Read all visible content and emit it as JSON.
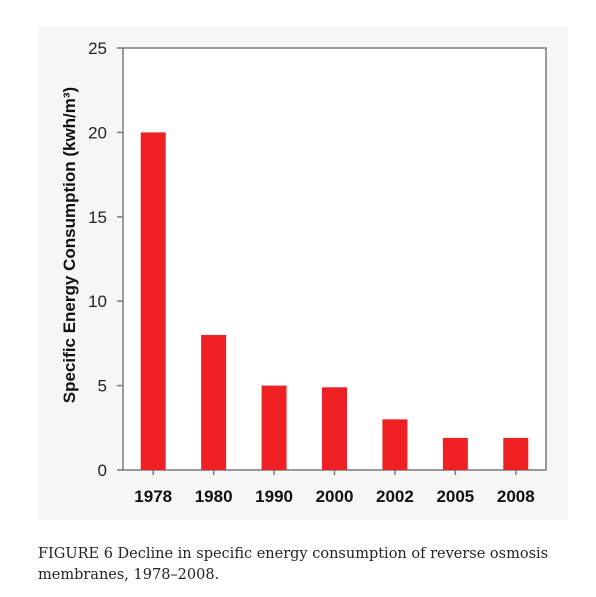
{
  "caption": "FIGURE 6 Decline in specific energy consumption of reverse osmosis membranes, 1978–2008.",
  "chart_data": {
    "type": "bar",
    "categories": [
      "1978",
      "1980",
      "1990",
      "2000",
      "2002",
      "2005",
      "2008"
    ],
    "values": [
      20,
      8,
      5,
      4.9,
      3,
      1.9,
      1.9
    ],
    "title": "",
    "xlabel": "",
    "ylabel": "Specific Energy Consumption (kwh/m³)",
    "ylim": [
      0,
      25
    ],
    "yticks": [
      0,
      5,
      10,
      15,
      20,
      25
    ],
    "grid": false,
    "legend": "none",
    "bar_color": "#ee2024",
    "axis_color": "#7a7a7a"
  }
}
